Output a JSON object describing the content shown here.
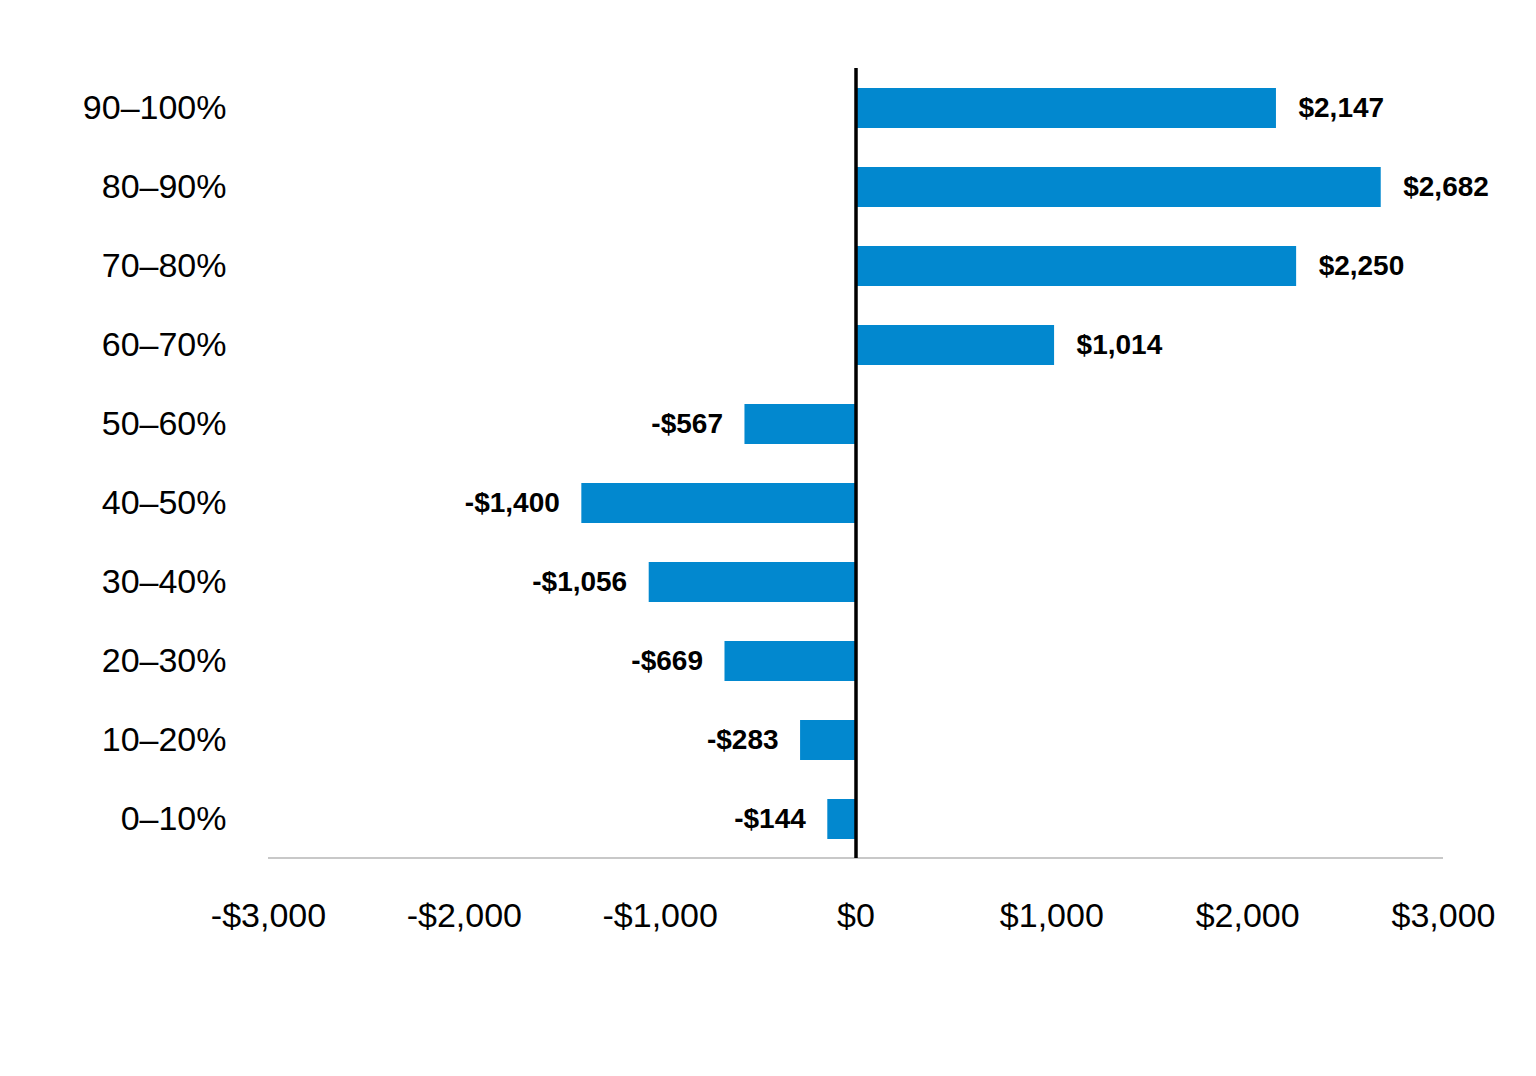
{
  "chart_data": {
    "type": "bar",
    "orientation": "horizontal",
    "data_labels": true,
    "color": "#0288cf",
    "categories": [
      "90–100%",
      "80–90%",
      "70–80%",
      "60–70%",
      "50–60%",
      "40–50%",
      "30–40%",
      "20–30%",
      "10–20%",
      "0–10%"
    ],
    "values": [
      2147,
      2682,
      2250,
      1014,
      -567,
      -1400,
      -1056,
      -669,
      -283,
      -144
    ],
    "value_labels": [
      "$2,147",
      "$2,682",
      "$2,250",
      "$1,014",
      "-$567",
      "-$1,400",
      "-$1,056",
      "-$669",
      "-$283",
      "-$144"
    ],
    "xlim": [
      -3000,
      3000
    ],
    "xticks": [
      {
        "value": -3000,
        "label": "-$3,000"
      },
      {
        "value": -2000,
        "label": "-$2,000"
      },
      {
        "value": -1000,
        "label": "-$1,000"
      },
      {
        "value": 0,
        "label": "$0"
      },
      {
        "value": 1000,
        "label": "$1,000"
      },
      {
        "value": 2000,
        "label": "$2,000"
      },
      {
        "value": 3000,
        "label": "$3,000"
      }
    ],
    "grid": false
  }
}
